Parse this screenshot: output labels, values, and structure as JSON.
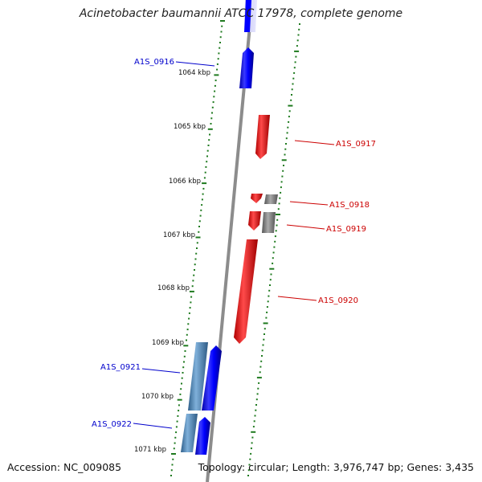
{
  "title": "Acinetobacter baumannii ATCC 17978, complete genome",
  "footer": {
    "accession": "Accession: NC_009085",
    "summary": "Topology: circular; Length: 3,976,747 bp; Genes: 3,435"
  },
  "colors": {
    "forward_gene": "#0000ff",
    "forward_gene_alt": "#4682b4",
    "reverse_gene": "#ff0000",
    "reverse_gene_alt": "#808080",
    "backbone": "#8c8c8c",
    "tick": "#1f7a1f",
    "forward_label": "#0000cc",
    "reverse_label": "#cc0000"
  },
  "scale": {
    "unit": "kbp",
    "labels": [
      "1064 kbp",
      "1065 kbp",
      "1066 kbp",
      "1067 kbp",
      "1068 kbp",
      "1069 kbp",
      "1070 kbp",
      "1071 kbp"
    ]
  },
  "genes": [
    {
      "label": "A1S_0916",
      "strand": "forward",
      "color": "#0000ff"
    },
    {
      "label": "A1S_0917",
      "strand": "reverse",
      "color": "#ff0000"
    },
    {
      "label": "A1S_0918",
      "strand": "reverse",
      "color": "#ff0000"
    },
    {
      "label": "A1S_0919",
      "strand": "reverse",
      "color": "#ff0000"
    },
    {
      "label": "A1S_0920",
      "strand": "reverse",
      "color": "#ff0000"
    },
    {
      "label": "A1S_0921",
      "strand": "forward",
      "color": "#0000ff"
    },
    {
      "label": "A1S_0922",
      "strand": "forward",
      "color": "#0000ff"
    }
  ]
}
